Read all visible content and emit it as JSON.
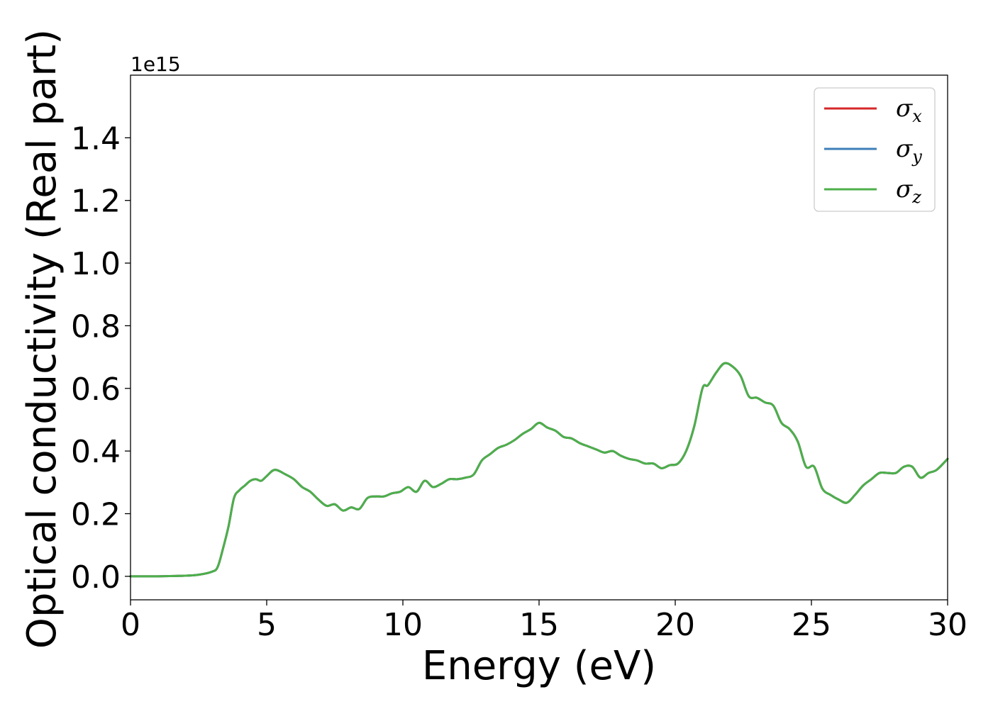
{
  "chart_data": {
    "type": "line",
    "title": "",
    "xlabel": "Energy (eV)",
    "ylabel": "Optical conductivity (Real part)",
    "y_offset_label": "1e15",
    "y_multiplier": 1000000000000000.0,
    "xlim": [
      0,
      30
    ],
    "ylim": [
      -0.075,
      1.6
    ],
    "xticks": [
      0,
      5,
      10,
      15,
      20,
      25,
      30
    ],
    "xtick_labels": [
      "0",
      "5",
      "10",
      "15",
      "20",
      "25",
      "30"
    ],
    "yticks": [
      0.0,
      0.2,
      0.4,
      0.6,
      0.8,
      1.0,
      1.2,
      1.4
    ],
    "ytick_labels": [
      "0.0",
      "0.2",
      "0.4",
      "0.6",
      "0.8",
      "1.0",
      "1.2",
      "1.4"
    ],
    "grid": false,
    "legend_position": "top-right",
    "x": [
      0,
      1,
      2,
      2.5,
      3,
      3.2,
      3.4,
      3.6,
      3.8,
      4.0,
      4.2,
      4.4,
      4.6,
      4.8,
      5.0,
      5.3,
      5.7,
      6.0,
      6.3,
      6.6,
      6.9,
      7.2,
      7.5,
      7.8,
      8.1,
      8.4,
      8.7,
      9.0,
      9.3,
      9.6,
      9.9,
      10.2,
      10.5,
      10.8,
      11.1,
      11.4,
      11.7,
      12.0,
      12.3,
      12.6,
      12.9,
      13.2,
      13.5,
      13.8,
      14.1,
      14.4,
      14.7,
      15.0,
      15.3,
      15.6,
      15.9,
      16.2,
      16.5,
      16.8,
      17.1,
      17.4,
      17.7,
      18.0,
      18.3,
      18.6,
      18.9,
      19.2,
      19.5,
      19.8,
      20.1,
      20.4,
      20.7,
      21.0,
      21.2,
      21.5,
      21.8,
      22.1,
      22.4,
      22.7,
      23.0,
      23.3,
      23.6,
      23.9,
      24.2,
      24.5,
      24.8,
      25.1,
      25.4,
      25.7,
      26.0,
      26.3,
      26.6,
      26.9,
      27.2,
      27.5,
      27.8,
      28.1,
      28.4,
      28.7,
      29.0,
      29.3,
      29.6,
      30.0
    ],
    "series": [
      {
        "name": "σx",
        "name_base": "σ",
        "name_sub": "x",
        "color": "#d62728",
        "values": [
          0,
          0,
          0.002,
          0.005,
          0.015,
          0.03,
          0.09,
          0.16,
          0.25,
          0.275,
          0.29,
          0.305,
          0.31,
          0.305,
          0.32,
          0.34,
          0.325,
          0.31,
          0.285,
          0.27,
          0.245,
          0.225,
          0.23,
          0.21,
          0.22,
          0.215,
          0.25,
          0.255,
          0.255,
          0.265,
          0.27,
          0.285,
          0.27,
          0.305,
          0.285,
          0.295,
          0.31,
          0.31,
          0.315,
          0.325,
          0.37,
          0.39,
          0.41,
          0.42,
          0.435,
          0.455,
          0.47,
          0.49,
          0.475,
          0.465,
          0.445,
          0.44,
          0.425,
          0.415,
          0.405,
          0.395,
          0.4,
          0.385,
          0.375,
          0.37,
          0.36,
          0.36,
          0.345,
          0.355,
          0.36,
          0.4,
          0.48,
          0.6,
          0.61,
          0.65,
          0.68,
          0.67,
          0.64,
          0.575,
          0.57,
          0.555,
          0.545,
          0.49,
          0.47,
          0.43,
          0.35,
          0.35,
          0.28,
          0.26,
          0.245,
          0.235,
          0.26,
          0.29,
          0.31,
          0.33,
          0.33,
          0.33,
          0.35,
          0.35,
          0.315,
          0.33,
          0.34,
          0.375
        ]
      },
      {
        "name": "σy",
        "name_base": "σ",
        "name_sub": "y",
        "color": "#3e7fb8",
        "values": [
          0,
          0,
          0.002,
          0.005,
          0.015,
          0.03,
          0.09,
          0.16,
          0.25,
          0.275,
          0.29,
          0.305,
          0.31,
          0.305,
          0.32,
          0.34,
          0.325,
          0.31,
          0.285,
          0.27,
          0.245,
          0.225,
          0.23,
          0.21,
          0.22,
          0.215,
          0.25,
          0.255,
          0.255,
          0.265,
          0.27,
          0.285,
          0.27,
          0.305,
          0.285,
          0.295,
          0.31,
          0.31,
          0.315,
          0.325,
          0.37,
          0.39,
          0.41,
          0.42,
          0.435,
          0.455,
          0.47,
          0.49,
          0.475,
          0.465,
          0.445,
          0.44,
          0.425,
          0.415,
          0.405,
          0.395,
          0.4,
          0.385,
          0.375,
          0.37,
          0.36,
          0.36,
          0.345,
          0.355,
          0.36,
          0.4,
          0.48,
          0.6,
          0.61,
          0.65,
          0.68,
          0.67,
          0.64,
          0.575,
          0.57,
          0.555,
          0.545,
          0.49,
          0.47,
          0.43,
          0.35,
          0.35,
          0.28,
          0.26,
          0.245,
          0.235,
          0.26,
          0.29,
          0.31,
          0.33,
          0.33,
          0.33,
          0.35,
          0.35,
          0.315,
          0.33,
          0.34,
          0.375
        ]
      },
      {
        "name": "σz",
        "name_base": "σ",
        "name_sub": "z",
        "color": "#4daf4a",
        "values": [
          0,
          0,
          0.002,
          0.005,
          0.015,
          0.03,
          0.09,
          0.16,
          0.25,
          0.275,
          0.29,
          0.305,
          0.31,
          0.305,
          0.32,
          0.34,
          0.325,
          0.31,
          0.285,
          0.27,
          0.245,
          0.225,
          0.23,
          0.21,
          0.22,
          0.215,
          0.25,
          0.255,
          0.255,
          0.265,
          0.27,
          0.285,
          0.27,
          0.305,
          0.285,
          0.295,
          0.31,
          0.31,
          0.315,
          0.325,
          0.37,
          0.39,
          0.41,
          0.42,
          0.435,
          0.455,
          0.47,
          0.49,
          0.475,
          0.465,
          0.445,
          0.44,
          0.425,
          0.415,
          0.405,
          0.395,
          0.4,
          0.385,
          0.375,
          0.37,
          0.36,
          0.36,
          0.345,
          0.355,
          0.36,
          0.4,
          0.48,
          0.6,
          0.61,
          0.65,
          0.68,
          0.67,
          0.64,
          0.575,
          0.57,
          0.555,
          0.545,
          0.49,
          0.47,
          0.43,
          0.35,
          0.35,
          0.28,
          0.26,
          0.245,
          0.235,
          0.26,
          0.29,
          0.31,
          0.33,
          0.33,
          0.33,
          0.35,
          0.35,
          0.315,
          0.33,
          0.34,
          0.375
        ]
      }
    ]
  }
}
